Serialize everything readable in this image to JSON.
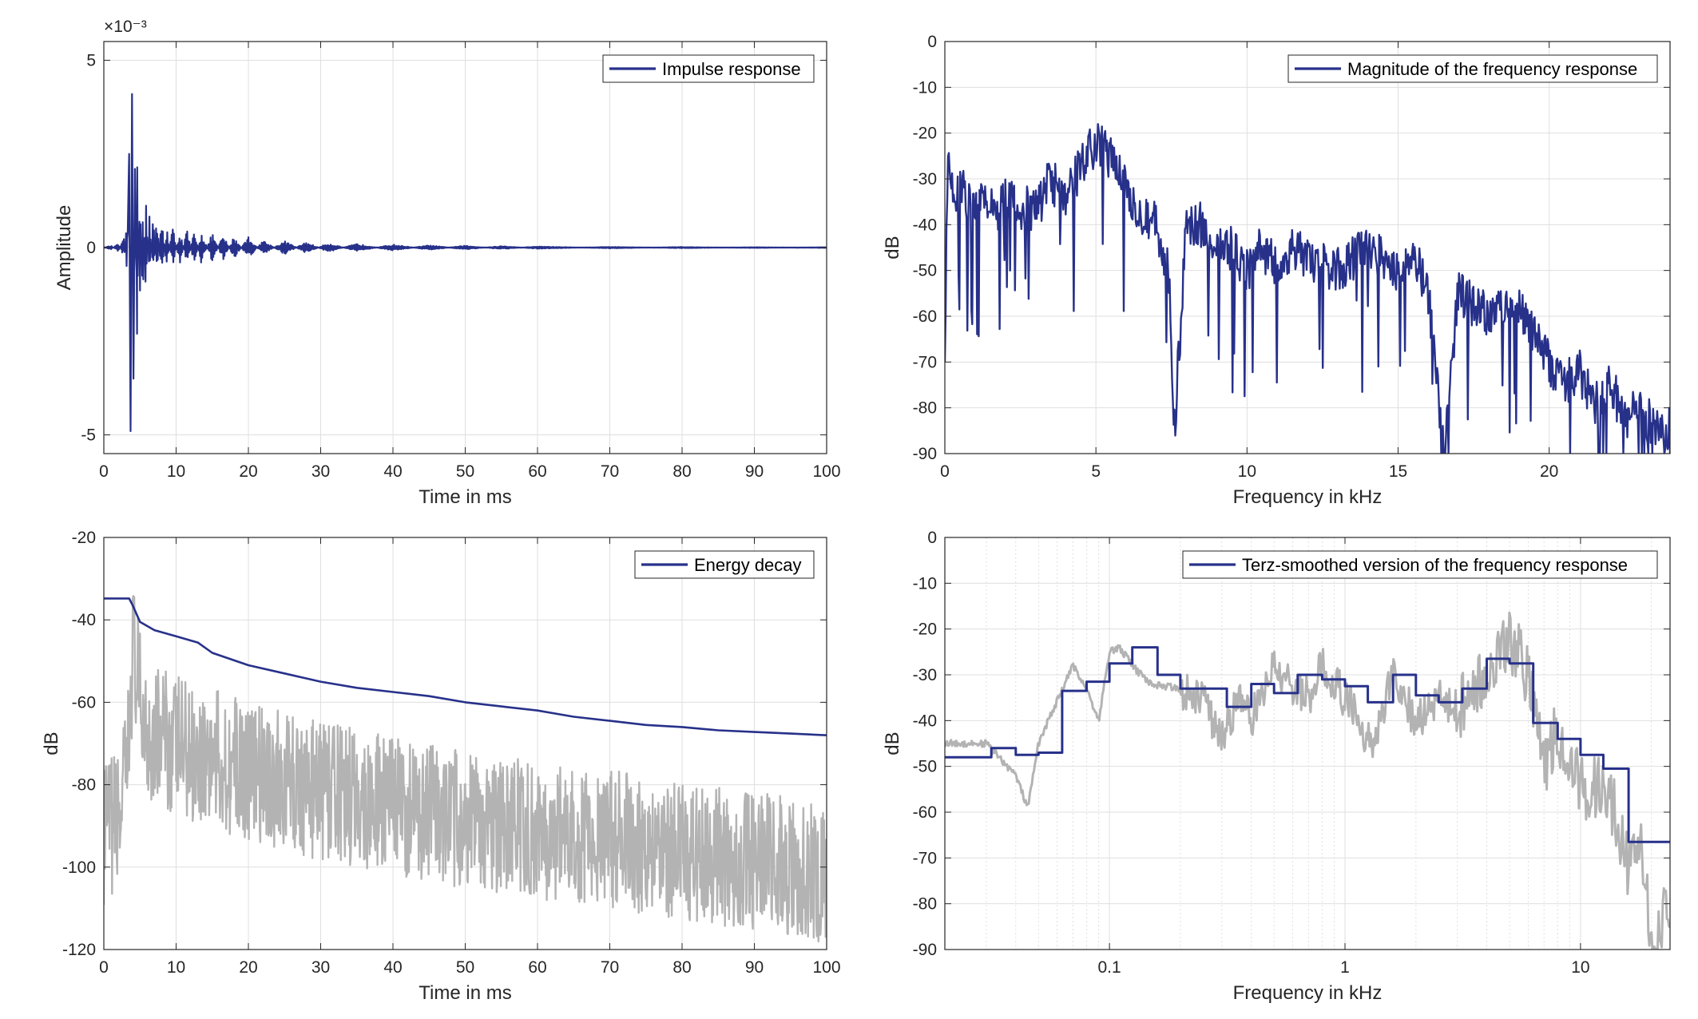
{
  "colors": {
    "series": "#27318a",
    "gray": "#b3b3b3",
    "grid": "#dfdfdf",
    "axis": "#262626"
  },
  "chart_data": [
    {
      "type": "line",
      "legend": [
        "Impulse response"
      ],
      "xlabel": "Time in ms",
      "ylabel": "Amplitude",
      "exponent_label": "×10⁻³",
      "xlim": [
        0,
        100
      ],
      "ylim": [
        -5.5,
        5.5
      ],
      "xticks": [
        0,
        10,
        20,
        30,
        40,
        50,
        60,
        70,
        80,
        90,
        100
      ],
      "yticks": [
        -5,
        0,
        5
      ],
      "ytick_labels": [
        "-5",
        "0",
        "5"
      ],
      "legend_position": "top-right",
      "grid": true,
      "series": [
        {
          "name": "Impulse response",
          "x": [
            0,
            1,
            2,
            2.8,
            3.2,
            3.5,
            3.7,
            3.9,
            4.1,
            4.3,
            4.6,
            5,
            5.4,
            5.8,
            6.3,
            6.8,
            7.3,
            8,
            8.7,
            9.5,
            10.5,
            11.5,
            12.5,
            13.5,
            15,
            16.5,
            18,
            20,
            22,
            25,
            28,
            31,
            35,
            40,
            45,
            50,
            55,
            60,
            70,
            80,
            90,
            100
          ],
          "values": [
            0,
            0.05,
            -0.1,
            0.25,
            -0.8,
            2.5,
            -4.9,
            4.1,
            -3.5,
            2.1,
            -2.3,
            1.7,
            -1.7,
            1.4,
            -1.2,
            1.0,
            -0.8,
            0.8,
            -0.6,
            0.6,
            -0.5,
            0.5,
            -0.45,
            0.45,
            -0.4,
            0.35,
            -0.3,
            0.3,
            -0.2,
            0.18,
            -0.15,
            0.12,
            -0.1,
            0.08,
            -0.06,
            0.05,
            -0.04,
            0.03,
            -0.02,
            0.015,
            -0.01,
            0.01
          ]
        }
      ]
    },
    {
      "type": "line",
      "legend": [
        "Magnitude of the frequency response"
      ],
      "xlabel": "Frequency in kHz",
      "ylabel": "dB",
      "xlim": [
        0,
        24
      ],
      "ylim": [
        -90,
        0
      ],
      "xticks": [
        0,
        5,
        10,
        15,
        20
      ],
      "yticks": [
        0,
        -10,
        -20,
        -30,
        -40,
        -50,
        -60,
        -70,
        -80,
        -90
      ],
      "legend_position": "top-right",
      "grid": true,
      "series": [
        {
          "name": "Magnitude of the frequency response",
          "x": [
            0,
            0.1,
            0.3,
            0.6,
            1,
            1.3,
            1.6,
            2,
            2.5,
            3,
            3.5,
            4,
            4.5,
            5,
            5.3,
            5.7,
            6,
            6.5,
            7,
            7.4,
            7.6,
            8,
            8.5,
            9,
            9.5,
            10,
            10.5,
            11,
            11.5,
            12,
            13,
            14,
            15,
            15.5,
            16,
            16.5,
            17,
            18,
            19,
            19.5,
            20,
            20.5,
            21,
            21.5,
            22,
            22.5,
            23,
            23.5,
            24
          ],
          "values": [
            -65,
            -28,
            -35,
            -32,
            -38,
            -33,
            -37,
            -35,
            -36,
            -37,
            -30,
            -35,
            -27,
            -22,
            -24,
            -27,
            -32,
            -37,
            -40,
            -50,
            -84,
            -40,
            -40,
            -45,
            -45,
            -50,
            -45,
            -50,
            -45,
            -48,
            -50,
            -45,
            -50,
            -46,
            -55,
            -90,
            -55,
            -60,
            -58,
            -65,
            -70,
            -75,
            -72,
            -80,
            -75,
            -82,
            -80,
            -85,
            -84
          ]
        }
      ]
    },
    {
      "type": "line",
      "legend": [
        "Energy decay"
      ],
      "xlabel": "Time in ms",
      "ylabel": "dB",
      "xlim": [
        0,
        100
      ],
      "ylim": [
        -120,
        -20
      ],
      "xticks": [
        0,
        10,
        20,
        30,
        40,
        50,
        60,
        70,
        80,
        90,
        100
      ],
      "yticks": [
        -20,
        -40,
        -60,
        -80,
        -100,
        -120
      ],
      "legend_position": "top-right",
      "grid": true,
      "series": [
        {
          "name": "Energy decay",
          "x": [
            0,
            3.5,
            4,
            5,
            7,
            10,
            13,
            15,
            20,
            25,
            30,
            35,
            40,
            45,
            50,
            55,
            60,
            65,
            70,
            75,
            80,
            85,
            90,
            95,
            100
          ],
          "values": [
            -34.8,
            -34.8,
            -36.5,
            -40.5,
            -42.5,
            -44,
            -45.5,
            -48,
            -51,
            -53,
            -55,
            -56.5,
            -57.5,
            -58.5,
            -60,
            -61,
            -62,
            -63.5,
            -64.5,
            -65.5,
            -66,
            -66.8,
            -67.2,
            -67.6,
            -68
          ]
        },
        {
          "x": [
            0,
            1,
            2,
            3,
            3.5,
            4,
            5,
            6,
            8,
            10,
            13,
            16,
            20,
            25,
            30,
            35,
            40,
            45,
            50,
            55,
            60,
            65,
            70,
            75,
            80,
            85,
            90,
            95,
            100
          ],
          "values": [
            -95,
            -92,
            -90,
            -82,
            -70,
            -47,
            -62,
            -68,
            -70,
            -72,
            -74,
            -76,
            -78,
            -81,
            -83,
            -85,
            -87,
            -89,
            -90,
            -92,
            -93,
            -94,
            -95,
            -96,
            -98,
            -99,
            -100,
            -102,
            -104
          ]
        }
      ]
    },
    {
      "type": "line",
      "legend": [
        "Terz-smoothed version of the frequency response"
      ],
      "xlabel": "Frequency in kHz",
      "ylabel": "dB",
      "xscale": "log",
      "xlim": [
        0.02,
        24
      ],
      "ylim": [
        -90,
        0
      ],
      "xticks": [
        0.1,
        1,
        10
      ],
      "xtick_labels": [
        "0.1",
        "1",
        "10"
      ],
      "yticks": [
        0,
        -10,
        -20,
        -30,
        -40,
        -50,
        -60,
        -70,
        -80,
        -90
      ],
      "legend_position": "top-right",
      "grid": true,
      "series": [
        {
          "name": "Terz-smoothed version of the frequency response",
          "x": [
            0.02,
            0.0315,
            0.0315,
            0.04,
            0.04,
            0.05,
            0.05,
            0.063,
            0.063,
            0.08,
            0.08,
            0.1,
            0.1,
            0.125,
            0.125,
            0.16,
            0.16,
            0.2,
            0.2,
            0.25,
            0.25,
            0.315,
            0.315,
            0.4,
            0.4,
            0.5,
            0.5,
            0.63,
            0.63,
            0.8,
            0.8,
            1.0,
            1.0,
            1.25,
            1.25,
            1.6,
            1.6,
            2.0,
            2.0,
            2.5,
            2.5,
            3.15,
            3.15,
            4.0,
            4.0,
            5.0,
            5.0,
            6.3,
            6.3,
            8.0,
            8.0,
            10.0,
            10.0,
            12.5,
            12.5,
            16.0,
            16.0,
            20.0,
            20.0,
            24.0
          ],
          "values": [
            -48,
            -48,
            -46,
            -46,
            -47.5,
            -47.5,
            -47,
            -47,
            -33.5,
            -33.5,
            -31.5,
            -31.5,
            -27.5,
            -27.5,
            -24,
            -24,
            -30,
            -30,
            -33,
            -33,
            -33,
            -33,
            -37,
            -37,
            -32,
            -32,
            -34,
            -34,
            -30,
            -30,
            -31,
            -31,
            -32.5,
            -32.5,
            -36,
            -36,
            -30,
            -30,
            -34.5,
            -34.5,
            -36,
            -36,
            -33,
            -33,
            -26.5,
            -26.5,
            -27.5,
            -27.5,
            -40.5,
            -40.5,
            -44,
            -44,
            -47.5,
            -47.5,
            -50.5,
            -50.5,
            -66.5,
            -66.5,
            -66.5,
            -66.5
          ]
        },
        {
          "x": [
            0.02,
            0.03,
            0.04,
            0.045,
            0.05,
            0.055,
            0.07,
            0.08,
            0.09,
            0.1,
            0.11,
            0.13,
            0.15,
            0.2,
            0.25,
            0.3,
            0.35,
            0.4,
            0.5,
            0.6,
            0.7,
            0.8,
            1,
            1.3,
            1.6,
            2,
            2.5,
            3,
            4,
            5,
            6,
            7,
            8,
            10,
            12,
            14,
            16,
            18,
            20,
            24
          ],
          "values": [
            -45,
            -45,
            -52,
            -59,
            -45,
            -40,
            -28,
            -33,
            -40,
            -25,
            -24,
            -29,
            -32,
            -33,
            -35,
            -45,
            -35,
            -40,
            -28,
            -32,
            -35,
            -28,
            -35,
            -45,
            -30,
            -40,
            -35,
            -38,
            -30,
            -22,
            -30,
            -50,
            -42,
            -55,
            -55,
            -60,
            -72,
            -65,
            -90,
            -80
          ]
        }
      ]
    }
  ]
}
